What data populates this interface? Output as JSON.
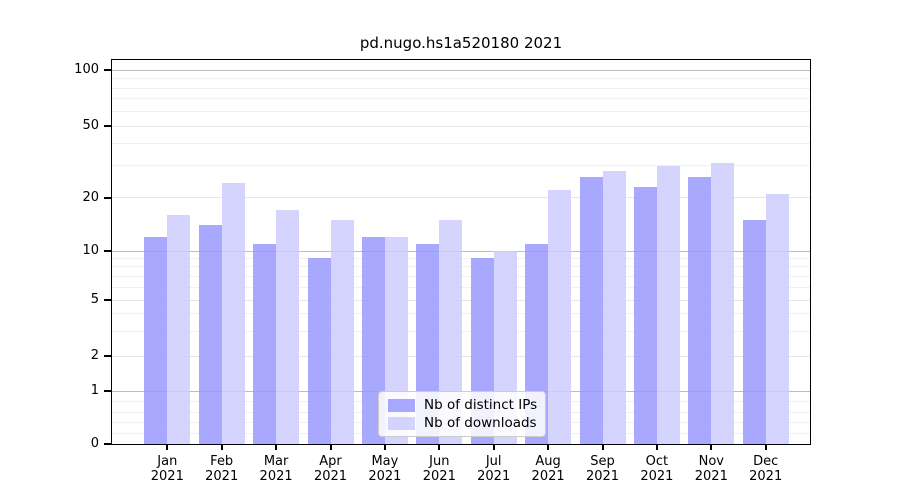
{
  "chart_data": {
    "type": "bar",
    "title": "pd.nugo.hs1a520180 2021",
    "categories": [
      "Jan 2021",
      "Feb 2021",
      "Mar 2021",
      "Apr 2021",
      "May 2021",
      "Jun 2021",
      "Jul 2021",
      "Aug 2021",
      "Sep 2021",
      "Oct 2021",
      "Nov 2021",
      "Dec 2021"
    ],
    "series": [
      {
        "name": "Nb of distinct IPs",
        "color": "#9999ff",
        "values": [
          12,
          14,
          11,
          9,
          12,
          11,
          9,
          11,
          26,
          23,
          26,
          15
        ]
      },
      {
        "name": "Nb of downloads",
        "color": "#ccccff",
        "values": [
          16,
          24,
          17,
          15,
          12,
          15,
          10,
          22,
          28,
          30,
          31,
          21
        ]
      }
    ],
    "x_axis": {
      "months": [
        "Jan",
        "Feb",
        "Mar",
        "Apr",
        "May",
        "Jun",
        "Jul",
        "Aug",
        "Sep",
        "Oct",
        "Nov",
        "Dec"
      ],
      "year": "2021"
    },
    "y_axis": {
      "scale": "symlog",
      "ticks": [
        100,
        50,
        20,
        10,
        5,
        2,
        1,
        0
      ],
      "tick_labels": [
        "100",
        "50",
        "20",
        "10",
        "5",
        "2",
        "1",
        "0"
      ],
      "ylim": [
        0,
        113
      ],
      "gridlines_light": [
        2,
        5,
        20,
        50
      ],
      "gridlines_major": [
        1,
        10,
        100
      ],
      "gridlines_minor": [
        0.2,
        0.4,
        0.6,
        0.8,
        3,
        4,
        6,
        7,
        8,
        9,
        30,
        40,
        60,
        70,
        80,
        90
      ]
    },
    "grid": true,
    "legend": {
      "position": "lower center",
      "entries": [
        "Nb of distinct IPs",
        "Nb of downloads"
      ]
    }
  }
}
